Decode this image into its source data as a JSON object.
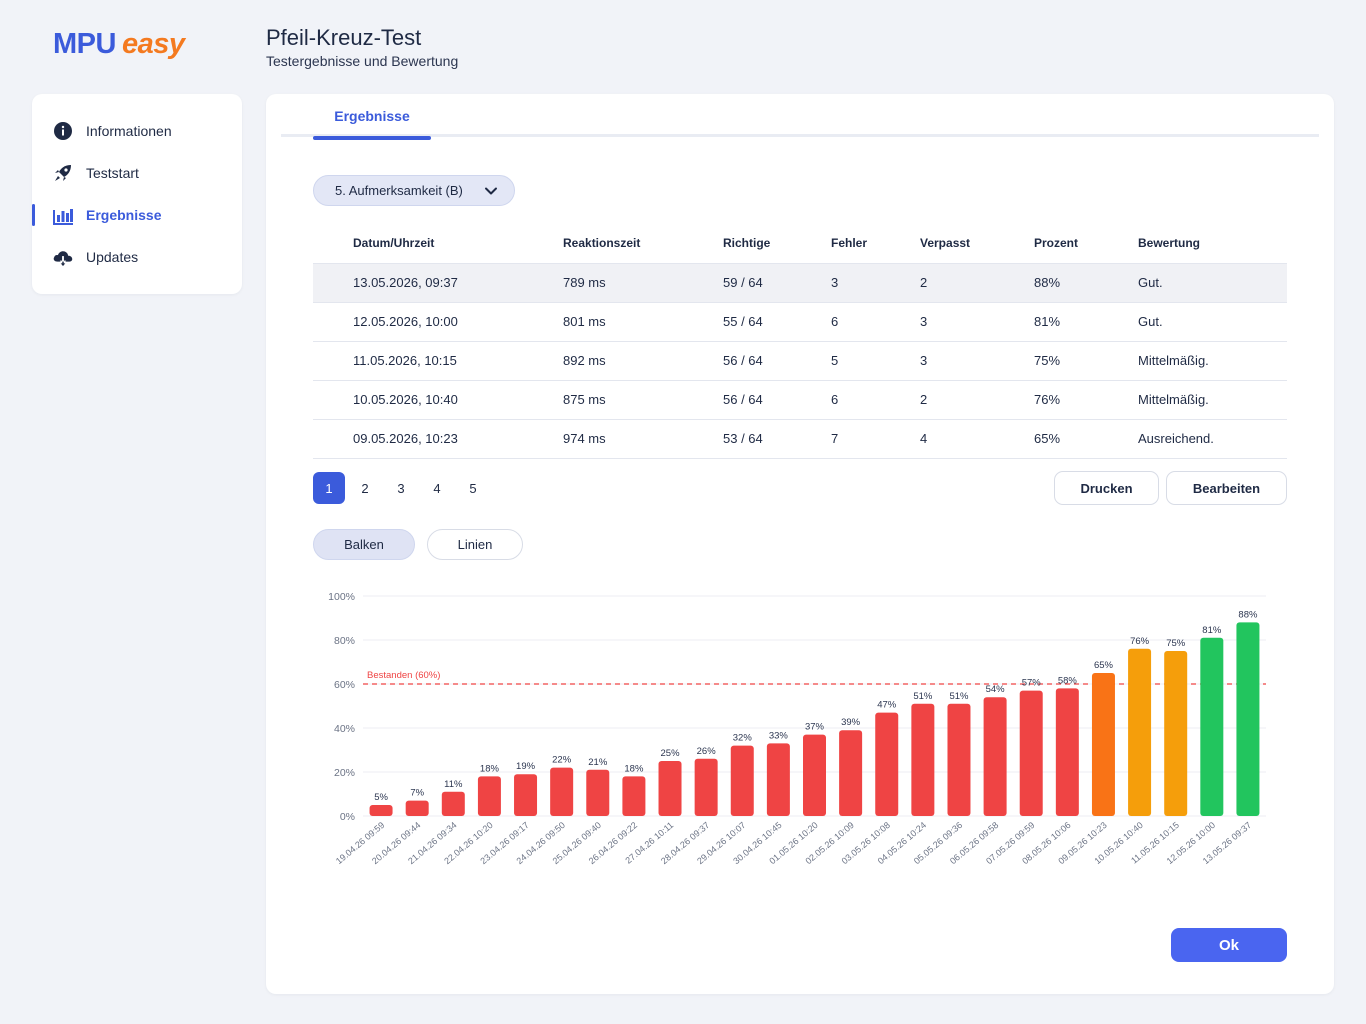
{
  "brand": {
    "part1": "MPU",
    "part2": "easy"
  },
  "header": {
    "title": "Pfeil-Kreuz-Test",
    "subtitle": "Testergebnisse und Bewertung"
  },
  "sidebar": {
    "items": [
      {
        "label": "Informationen",
        "icon": "info-icon"
      },
      {
        "label": "Teststart",
        "icon": "rocket-icon"
      },
      {
        "label": "Ergebnisse",
        "icon": "bar-chart-icon",
        "active": true
      },
      {
        "label": "Updates",
        "icon": "cloud-download-icon"
      }
    ]
  },
  "tabs": {
    "active": "Ergebnisse"
  },
  "dropdown": {
    "selected": "5. Aufmerksamkeit (B)"
  },
  "table": {
    "headers": [
      "Datum/Uhrzeit",
      "Reaktionszeit",
      "Richtige",
      "Fehler",
      "Verpasst",
      "Prozent",
      "Bewertung"
    ],
    "rows": [
      [
        "13.05.2026, 09:37",
        "789 ms",
        "59 / 64",
        "3",
        "2",
        "88%",
        "Gut."
      ],
      [
        "12.05.2026, 10:00",
        "801 ms",
        "55 / 64",
        "6",
        "3",
        "81%",
        "Gut."
      ],
      [
        "11.05.2026, 10:15",
        "892 ms",
        "56 / 64",
        "5",
        "3",
        "75%",
        "Mittelmäßig."
      ],
      [
        "10.05.2026, 10:40",
        "875 ms",
        "56 / 64",
        "6",
        "2",
        "76%",
        "Mittelmäßig."
      ],
      [
        "09.05.2026, 10:23",
        "974 ms",
        "53 / 64",
        "7",
        "4",
        "65%",
        "Ausreichend."
      ]
    ]
  },
  "pagination": {
    "pages": [
      "1",
      "2",
      "3",
      "4",
      "5"
    ],
    "current": "1"
  },
  "actions": {
    "print": "Drucken",
    "edit": "Bearbeiten",
    "ok": "Ok"
  },
  "view_toggle": {
    "bars": "Balken",
    "lines": "Linien",
    "active": "Balken"
  },
  "colors": {
    "accent": "#3b5bdb",
    "fail": "#ef4444",
    "sufficient": "#f97316",
    "medium": "#f59e0b",
    "good": "#22c55e",
    "threshold": "#ef4444"
  },
  "chart_data": {
    "type": "bar",
    "categories": [
      "19.04.26 09:59",
      "20.04.26 09:44",
      "21.04.26 09:34",
      "22.04.26 10:20",
      "23.04.26 09:17",
      "24.04.26 09:50",
      "25.04.26 09:40",
      "26.04.26 09:22",
      "27.04.26 10:11",
      "28.04.26 09:37",
      "29.04.26 10:07",
      "30.04.26 10:45",
      "01.05.26 10:20",
      "02.05.26 10:09",
      "03.05.26 10:08",
      "04.05.26 10:24",
      "05.05.26 09:36",
      "06.05.26 09:58",
      "07.05.26 09:59",
      "08.05.26 10:06",
      "09.05.26 10:23",
      "10.05.26 10:40",
      "11.05.26 10:15",
      "12.05.26 10:00",
      "13.05.26 09:37"
    ],
    "values": [
      5,
      7,
      11,
      18,
      19,
      22,
      21,
      18,
      25,
      26,
      32,
      33,
      37,
      39,
      47,
      51,
      51,
      54,
      57,
      58,
      65,
      76,
      75,
      81,
      88
    ],
    "bar_colors": [
      "#ef4444",
      "#ef4444",
      "#ef4444",
      "#ef4444",
      "#ef4444",
      "#ef4444",
      "#ef4444",
      "#ef4444",
      "#ef4444",
      "#ef4444",
      "#ef4444",
      "#ef4444",
      "#ef4444",
      "#ef4444",
      "#ef4444",
      "#ef4444",
      "#ef4444",
      "#ef4444",
      "#ef4444",
      "#ef4444",
      "#f97316",
      "#f59e0b",
      "#f59e0b",
      "#22c55e",
      "#22c55e"
    ],
    "yticks": [
      "0%",
      "20%",
      "40%",
      "60%",
      "80%",
      "100%"
    ],
    "ylim": [
      0,
      100
    ],
    "threshold": {
      "value": 60,
      "label": "Bestanden (60%)"
    },
    "value_suffix": "%",
    "grid": true
  }
}
